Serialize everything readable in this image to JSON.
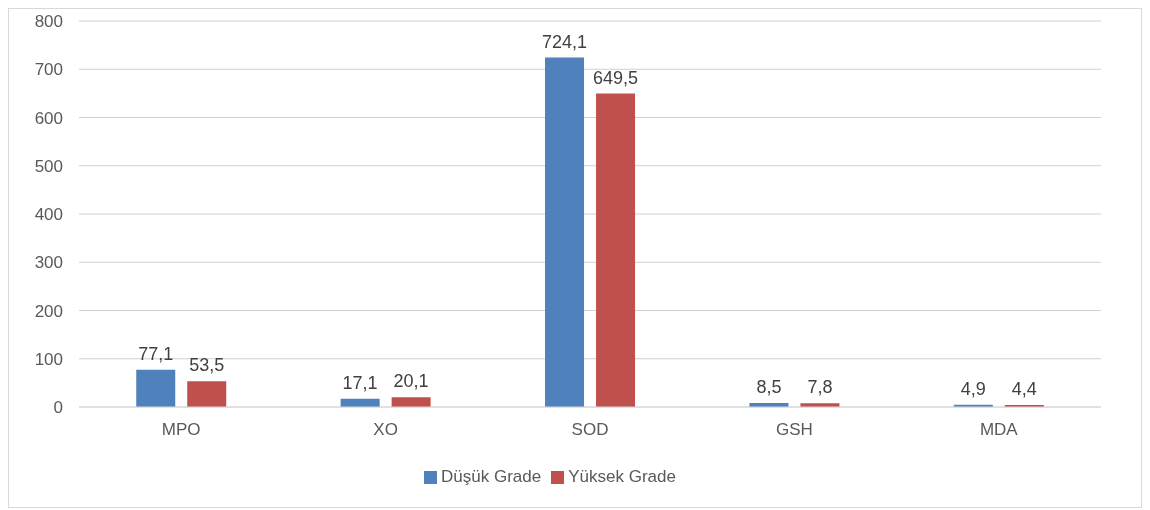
{
  "chart_data": {
    "type": "bar",
    "categories": [
      "MPO",
      "XO",
      "SOD",
      "GSH",
      "MDA"
    ],
    "series": [
      {
        "name": "Düşük Grade",
        "color": "#4f81bd",
        "values": [
          77.1,
          17.1,
          724.1,
          8.5,
          4.9
        ],
        "value_labels": [
          "77,1",
          "17,1",
          "724,1",
          "8,5",
          "4,9"
        ]
      },
      {
        "name": "Yüksek Grade",
        "color": "#c0504d",
        "values": [
          53.5,
          20.1,
          649.5,
          7.8,
          4.4
        ],
        "value_labels": [
          "53,5",
          "20,1",
          "649,5",
          "7,8",
          "4,4"
        ]
      }
    ],
    "ylim": [
      0,
      800
    ],
    "yticks": [
      0,
      100,
      200,
      300,
      400,
      500,
      600,
      700,
      800
    ],
    "grid": "y",
    "legend": "bottom"
  }
}
